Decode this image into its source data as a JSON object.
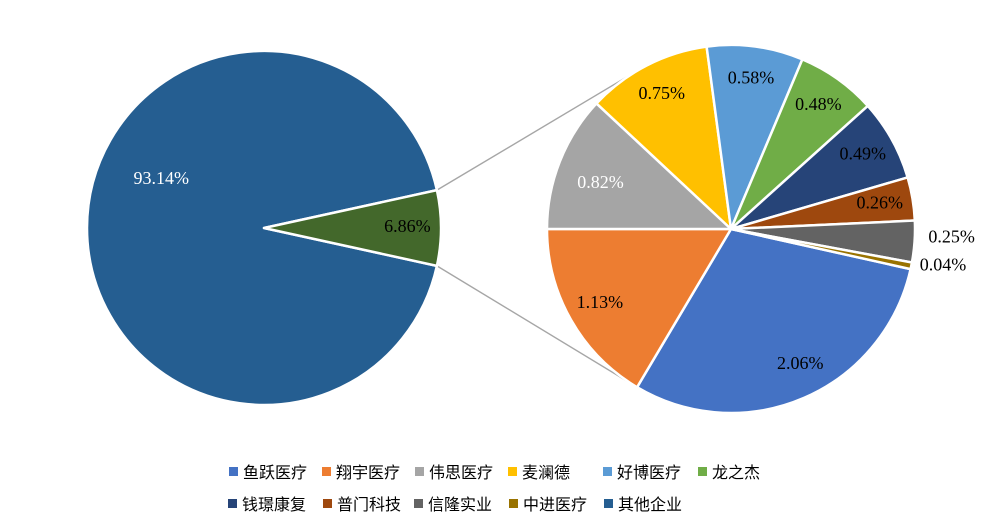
{
  "chart_data": {
    "type": "pie-of-pie",
    "title": "",
    "background_color": "#FFFFFF",
    "slice_border_color": "#FFFFFF",
    "connector_line_color": "#A6A6A6",
    "legend_position": "bottom",
    "legend": [
      {
        "label": "鱼跃医疗",
        "color": "#4472C4"
      },
      {
        "label": "翔宇医疗",
        "color": "#ED7D31"
      },
      {
        "label": "伟思医疗",
        "color": "#A5A5A5"
      },
      {
        "label": "麦澜德",
        "color": "#FFC000"
      },
      {
        "label": "好博医疗",
        "color": "#5B9BD5"
      },
      {
        "label": "龙之杰",
        "color": "#70AD47"
      },
      {
        "label": "钱璟康复",
        "color": "#264478"
      },
      {
        "label": "普门科技",
        "color": "#9E480E"
      },
      {
        "label": "信隆实业",
        "color": "#636363"
      },
      {
        "label": "中进医疗",
        "color": "#997300"
      },
      {
        "label": "其他企业",
        "color": "#255E91"
      }
    ],
    "primary_pie": {
      "start_angle_deg": -12.35,
      "slices": [
        {
          "name": "其他企业",
          "value": 93.14,
          "label": "93.14%",
          "color": "#255E91",
          "label_color": "#FFFFFF",
          "placement": "inside",
          "label_angle_deg": 155,
          "label_r_frac": 0.64
        },
        {
          "value": 6.86,
          "label": "6.86%",
          "color": "#43682B",
          "label_color": "#000000",
          "placement": "inside",
          "label_r_frac": 0.81
        }
      ]
    },
    "secondary_pie": {
      "start_angle_deg": -12.59,
      "slices": [
        {
          "name": "鱼跃医疗",
          "value": 2.06,
          "label": "2.06%",
          "color": "#4472C4",
          "label_color": "#000000",
          "placement": "inside",
          "label_angle_deg": -63,
          "label_r_frac": 0.83
        },
        {
          "name": "翔宇医疗",
          "value": 1.13,
          "label": "1.13%",
          "color": "#ED7D31",
          "label_color": "#000000",
          "placement": "inside"
        },
        {
          "name": "伟思医疗",
          "value": 0.82,
          "label": "0.82%",
          "color": "#A5A5A5",
          "label_color": "#FFFFFF",
          "placement": "inside",
          "label_angle_deg": 161,
          "label_r_frac": 0.75
        },
        {
          "name": "麦澜德",
          "value": 0.75,
          "label": "0.75%",
          "color": "#FFC000",
          "label_color": "#000000",
          "placement": "inside"
        },
        {
          "name": "好博医疗",
          "value": 0.58,
          "label": "0.58%",
          "color": "#5B9BD5",
          "label_color": "#000000",
          "placement": "inside"
        },
        {
          "name": "龙之杰",
          "value": 0.48,
          "label": "0.48%",
          "color": "#70AD47",
          "label_color": "#000000",
          "placement": "inside"
        },
        {
          "name": "钱璟康复",
          "value": 0.49,
          "label": "0.49%",
          "color": "#264478",
          "label_color": "#000000",
          "placement": "inside"
        },
        {
          "name": "普门科技",
          "value": 0.26,
          "label": "0.26%",
          "color": "#9E480E",
          "label_color": "#000000",
          "placement": "inside"
        },
        {
          "name": "信隆实业",
          "value": 0.25,
          "label": "0.25%",
          "color": "#636363",
          "label_color": "#000000",
          "placement": "outside",
          "label_angle_deg": -2.5,
          "label_r_frac": 1.2
        },
        {
          "name": "中进医疗",
          "value": 0.04,
          "label": "0.04%",
          "color": "#997300",
          "label_color": "#000000",
          "placement": "outside",
          "label_angle_deg": -10,
          "label_r_frac": 1.17
        }
      ]
    }
  }
}
